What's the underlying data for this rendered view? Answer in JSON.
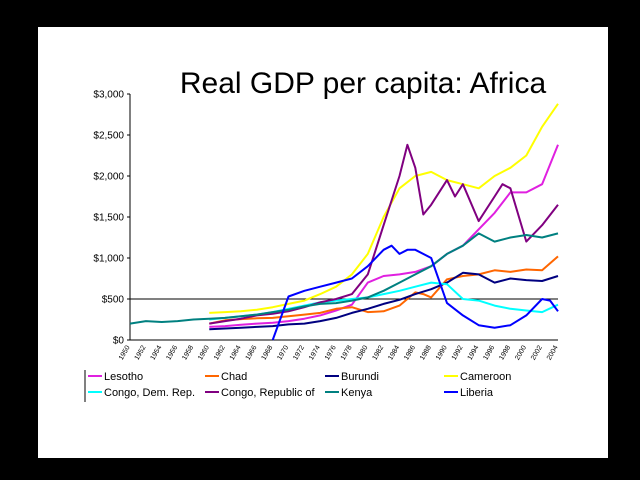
{
  "slide": {
    "title": "Real GDP per capita: Africa"
  },
  "chart_data": {
    "type": "line",
    "title": "Real GDP per capita: Africa",
    "xlabel": "",
    "ylabel": "",
    "ylim": [
      0,
      3000
    ],
    "xlim": [
      1950,
      2004
    ],
    "grid": false,
    "reference_line": 500,
    "legend_position": "bottom",
    "y_ticks": [
      "$0",
      "$500",
      "$1,000",
      "$1,500",
      "$2,000",
      "$2,500",
      "$3,000"
    ],
    "y_tick_values": [
      0,
      500,
      1000,
      1500,
      2000,
      2500,
      3000
    ],
    "x_ticks": [
      "1950",
      "1952",
      "1954",
      "1956",
      "1958",
      "1960",
      "1962",
      "1964",
      "1966",
      "1968",
      "1970",
      "1972",
      "1974",
      "1976",
      "1978",
      "1980",
      "1982",
      "1984",
      "1986",
      "1988",
      "1990",
      "1992",
      "1994",
      "1996",
      "1998",
      "2000",
      "2002",
      "2004"
    ],
    "series": [
      {
        "name": "Lesotho",
        "color": "#e020e0",
        "x": [
          1960,
          1962,
          1964,
          1966,
          1968,
          1970,
          1972,
          1974,
          1976,
          1978,
          1980,
          1982,
          1984,
          1986,
          1988,
          1990,
          1992,
          1994,
          1996,
          1998,
          2000,
          2002,
          2004
        ],
        "y": [
          160,
          170,
          185,
          200,
          210,
          230,
          260,
          300,
          360,
          430,
          700,
          780,
          800,
          830,
          900,
          1050,
          1150,
          1350,
          1550,
          1800,
          1800,
          1900,
          2380
        ]
      },
      {
        "name": "Chad",
        "color": "#ff6600",
        "x": [
          1960,
          1962,
          1964,
          1966,
          1968,
          1970,
          1972,
          1974,
          1976,
          1978,
          1980,
          1982,
          1984,
          1986,
          1987,
          1988,
          1990,
          1992,
          1994,
          1996,
          1998,
          2000,
          2002,
          2004
        ],
        "y": [
          200,
          240,
          255,
          265,
          270,
          290,
          310,
          330,
          380,
          400,
          340,
          350,
          420,
          580,
          560,
          520,
          740,
          780,
          800,
          850,
          830,
          860,
          850,
          1020
        ]
      },
      {
        "name": "Burundi",
        "color": "#000080",
        "x": [
          1960,
          1962,
          1964,
          1966,
          1968,
          1970,
          1972,
          1974,
          1976,
          1978,
          1980,
          1982,
          1984,
          1986,
          1988,
          1990,
          1992,
          1994,
          1996,
          1998,
          2000,
          2002,
          2004
        ],
        "y": [
          130,
          140,
          150,
          160,
          170,
          190,
          200,
          230,
          270,
          330,
          380,
          440,
          490,
          560,
          620,
          700,
          820,
          800,
          700,
          750,
          730,
          720,
          780
        ]
      },
      {
        "name": "Cameroon",
        "color": "#ffff00",
        "x": [
          1960,
          1962,
          1964,
          1966,
          1968,
          1970,
          1972,
          1974,
          1976,
          1978,
          1980,
          1982,
          1984,
          1986,
          1988,
          1990,
          1992,
          1994,
          1996,
          1998,
          2000,
          2002,
          2004
        ],
        "y": [
          330,
          340,
          350,
          370,
          400,
          440,
          480,
          560,
          650,
          800,
          1050,
          1500,
          1850,
          2000,
          2050,
          1950,
          1900,
          1850,
          2000,
          2100,
          2250,
          2600,
          2880
        ]
      },
      {
        "name": "Congo, Dem. Rep.",
        "color": "#00ffff",
        "x": [
          1960,
          1962,
          1964,
          1966,
          1968,
          1970,
          1972,
          1974,
          1976,
          1978,
          1980,
          1982,
          1984,
          1986,
          1988,
          1990,
          1992,
          1994,
          1996,
          1998,
          2000,
          2002,
          2004
        ],
        "y": [
          250,
          270,
          290,
          310,
          340,
          380,
          420,
          460,
          480,
          500,
          520,
          560,
          600,
          650,
          700,
          680,
          500,
          480,
          420,
          380,
          360,
          340,
          430
        ]
      },
      {
        "name": "Congo, Republic of",
        "color": "#800080",
        "x": [
          1960,
          1962,
          1964,
          1966,
          1968,
          1970,
          1972,
          1974,
          1976,
          1978,
          1980,
          1982,
          1984,
          1985,
          1986,
          1987,
          1988,
          1990,
          1991,
          1992,
          1994,
          1996,
          1997,
          1998,
          2000,
          2002,
          2004
        ],
        "y": [
          200,
          230,
          260,
          300,
          320,
          350,
          400,
          460,
          500,
          560,
          800,
          1400,
          2000,
          2380,
          2100,
          1530,
          1650,
          1950,
          1750,
          1900,
          1450,
          1750,
          1900,
          1850,
          1200,
          1400,
          1650
        ]
      },
      {
        "name": "Kenya",
        "color": "#008080",
        "x": [
          1950,
          1952,
          1954,
          1956,
          1958,
          1960,
          1962,
          1964,
          1966,
          1968,
          1970,
          1972,
          1974,
          1976,
          1978,
          1980,
          1982,
          1984,
          1986,
          1988,
          1990,
          1992,
          1994,
          1996,
          1998,
          2000,
          2002,
          2004
        ],
        "y": [
          200,
          230,
          220,
          230,
          250,
          260,
          270,
          290,
          310,
          340,
          370,
          410,
          440,
          450,
          480,
          520,
          600,
          700,
          800,
          900,
          1050,
          1150,
          1300,
          1200,
          1250,
          1280,
          1250,
          1300
        ]
      },
      {
        "name": "Liberia",
        "color": "#0000ff",
        "x": [
          1968,
          1970,
          1972,
          1974,
          1976,
          1978,
          1980,
          1982,
          1983,
          1984,
          1985,
          1986,
          1988,
          1990,
          1992,
          1994,
          1996,
          1998,
          2000,
          2002,
          2003,
          2004
        ],
        "y": [
          0,
          530,
          600,
          650,
          700,
          750,
          900,
          1100,
          1150,
          1050,
          1100,
          1100,
          1000,
          450,
          300,
          180,
          150,
          180,
          300,
          500,
          480,
          350
        ]
      }
    ]
  }
}
